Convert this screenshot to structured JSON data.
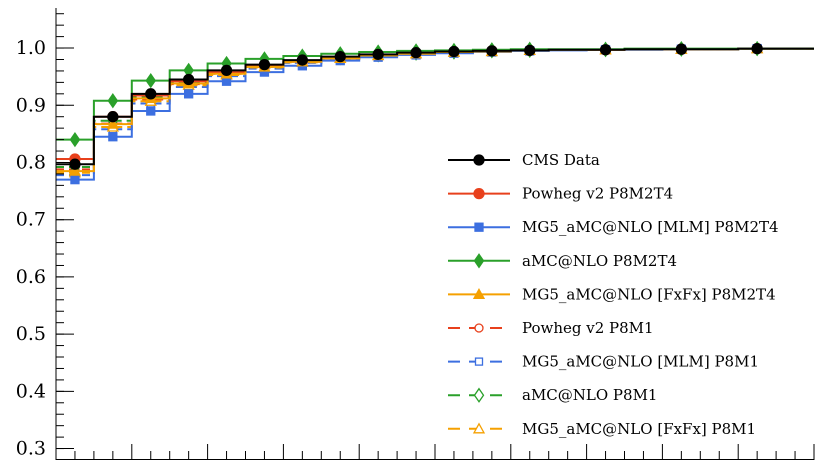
{
  "chart_data": {
    "type": "line",
    "title": "",
    "xlabel": "",
    "ylabel": "",
    "ylim": [
      0.28,
      1.07
    ],
    "step": true,
    "bins": 20,
    "y_ticks": [
      "0.3",
      "0.4",
      "0.5",
      "0.6",
      "0.7",
      "0.8",
      "0.9",
      "1.0"
    ],
    "y_tick_values": [
      0.3,
      0.4,
      0.5,
      0.6,
      0.7,
      0.8,
      0.9,
      1.0
    ],
    "legend_position": "bottom-right",
    "series": [
      {
        "name": "CMS Data",
        "color": "#000000",
        "style": "solid",
        "marker": "circle-filled",
        "values": [
          0.797,
          0.88,
          0.92,
          0.945,
          0.961,
          0.971,
          0.979,
          0.985,
          0.989,
          0.992,
          0.994,
          0.995,
          0.996,
          0.997,
          0.997,
          0.998,
          0.998,
          0.998,
          0.999,
          0.999
        ]
      },
      {
        "name": "Powheg v2 P8M2T4",
        "color": "#e8401c",
        "style": "solid",
        "marker": "circle-filled",
        "values": [
          0.806,
          0.88,
          0.917,
          0.942,
          0.958,
          0.969,
          0.977,
          0.983,
          0.988,
          0.991,
          0.993,
          0.995,
          0.996,
          0.997,
          0.997,
          0.998,
          0.998,
          0.998,
          0.999,
          0.999
        ]
      },
      {
        "name": "MG5_aMC@NLO [MLM] P8M2T4",
        "color": "#3c6fe0",
        "style": "solid",
        "marker": "square-filled",
        "values": [
          0.77,
          0.845,
          0.89,
          0.92,
          0.942,
          0.958,
          0.969,
          0.978,
          0.984,
          0.988,
          0.991,
          0.993,
          0.995,
          0.996,
          0.997,
          0.997,
          0.998,
          0.998,
          0.999,
          0.999
        ]
      },
      {
        "name": "aMC@NLO P8M2T4",
        "color": "#2aa02a",
        "style": "solid",
        "marker": "diamond-filled",
        "values": [
          0.84,
          0.908,
          0.943,
          0.961,
          0.973,
          0.981,
          0.986,
          0.99,
          0.993,
          0.995,
          0.996,
          0.997,
          0.998,
          0.998,
          0.998,
          0.999,
          0.999,
          0.999,
          0.999,
          0.999
        ]
      },
      {
        "name": "MG5_aMC@NLO [FxFx] P8M2T4",
        "color": "#f5a000",
        "style": "solid",
        "marker": "triangle-filled",
        "values": [
          0.785,
          0.867,
          0.912,
          0.938,
          0.955,
          0.967,
          0.976,
          0.982,
          0.987,
          0.99,
          0.993,
          0.994,
          0.996,
          0.997,
          0.997,
          0.998,
          0.998,
          0.998,
          0.999,
          0.999
        ]
      },
      {
        "name": "Powheg v2 P8M1",
        "color": "#e8401c",
        "style": "dashed",
        "marker": "circle-open",
        "values": [
          0.788,
          0.868,
          0.91,
          0.937,
          0.955,
          0.967,
          0.976,
          0.982,
          0.987,
          0.99,
          0.993,
          0.994,
          0.996,
          0.997,
          0.997,
          0.998,
          0.998,
          0.998,
          0.999,
          0.999
        ]
      },
      {
        "name": "MG5_aMC@NLO [MLM] P8M1",
        "color": "#3c6fe0",
        "style": "dashed",
        "marker": "square-open",
        "values": [
          0.778,
          0.858,
          0.903,
          0.932,
          0.951,
          0.964,
          0.974,
          0.981,
          0.986,
          0.99,
          0.992,
          0.994,
          0.996,
          0.997,
          0.997,
          0.998,
          0.998,
          0.998,
          0.999,
          0.999
        ]
      },
      {
        "name": "aMC@NLO P8M1",
        "color": "#2aa02a",
        "style": "dashed",
        "marker": "diamond-open",
        "values": [
          0.792,
          0.873,
          0.915,
          0.941,
          0.957,
          0.968,
          0.977,
          0.983,
          0.988,
          0.991,
          0.993,
          0.995,
          0.996,
          0.997,
          0.997,
          0.998,
          0.998,
          0.998,
          0.999,
          0.999
        ]
      },
      {
        "name": "MG5_aMC@NLO [FxFx] P8M1",
        "color": "#f5a000",
        "style": "dashed",
        "marker": "triangle-open",
        "values": [
          0.782,
          0.862,
          0.907,
          0.935,
          0.953,
          0.966,
          0.975,
          0.982,
          0.987,
          0.99,
          0.993,
          0.994,
          0.996,
          0.997,
          0.997,
          0.998,
          0.998,
          0.998,
          0.999,
          0.999
        ]
      }
    ]
  }
}
